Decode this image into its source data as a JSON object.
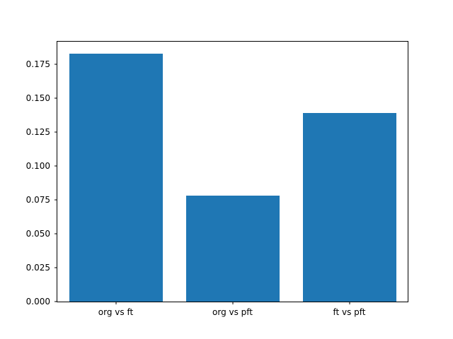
{
  "chart_data": {
    "type": "bar",
    "title": "",
    "xlabel": "",
    "ylabel": "",
    "categories": [
      "org vs ft",
      "org vs pft",
      "ft vs pft"
    ],
    "values": [
      0.183,
      0.078,
      0.139
    ],
    "ylim": [
      0,
      0.1917
    ],
    "yticks": [
      0.0,
      0.025,
      0.05,
      0.075,
      0.1,
      0.125,
      0.15,
      0.175
    ],
    "ytick_label_format_decimals": 3,
    "bar_color": "#1f77b4",
    "bar_relative_width": 0.8,
    "grid": false,
    "legend_position": "none",
    "background_color": "#ffffff",
    "axes_edge_color": "#000000"
  }
}
